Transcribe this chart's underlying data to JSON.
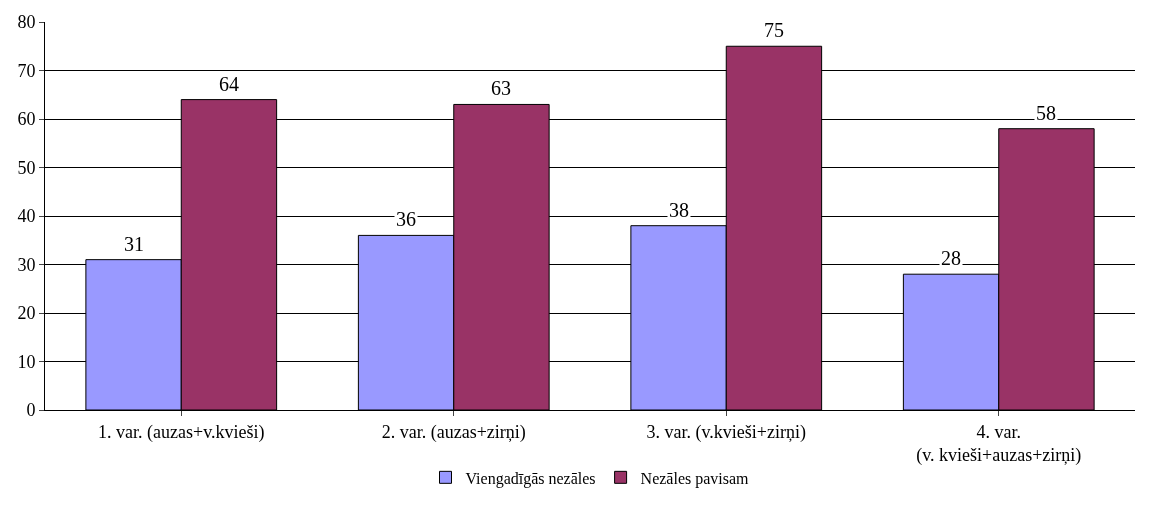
{
  "chart_data": {
    "type": "bar",
    "categories": [
      "1. var. (auzas+v.kvieši)",
      "2. var. (auzas+zirņi)",
      "3. var. (v.kvieši+zirņi)",
      "4. var.\n(v. kvieši+auzas+zirņi)"
    ],
    "series": [
      {
        "name": "Viengadīgās nezāles",
        "color": "#9999ff",
        "values": [
          31,
          36,
          38,
          28
        ]
      },
      {
        "name": "Nezāles pavisam",
        "color": "#993366",
        "values": [
          64,
          63,
          75,
          58
        ]
      }
    ],
    "ylim": [
      0,
      80
    ],
    "yticks": [
      0,
      10,
      20,
      30,
      40,
      50,
      60,
      70,
      80
    ],
    "grid": "y",
    "legend": "bottom",
    "data_labels": true
  }
}
